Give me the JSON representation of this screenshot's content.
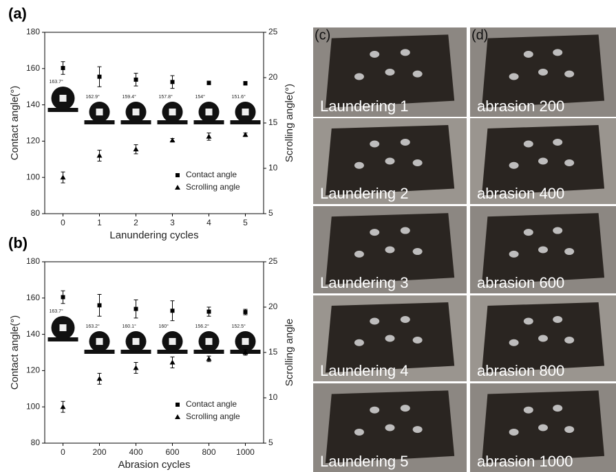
{
  "chart_data": [
    {
      "type": "scatter",
      "label": "(a)",
      "x_label": "Lanundering cycles",
      "y_label": "Contact angle(°)",
      "y2_label": "Scrolling angle(°)",
      "x": [
        0,
        1,
        2,
        3,
        4,
        5
      ],
      "xlim": [
        -0.5,
        5.5
      ],
      "xticks": [
        0,
        1,
        2,
        3,
        4,
        5
      ],
      "ylim": [
        80,
        180
      ],
      "yticks": [
        80,
        100,
        120,
        140,
        160,
        180
      ],
      "y2lim": [
        5,
        25
      ],
      "y2ticks": [
        5,
        10,
        15,
        20,
        25
      ],
      "series": [
        {
          "name": "Contact angle",
          "color": "#000000",
          "marker": "square",
          "values": [
            160.3,
            155.5,
            153.9,
            152.6,
            152.1,
            151.9
          ],
          "errors": [
            3.5,
            5.5,
            3.5,
            3.5,
            1,
            1
          ]
        },
        {
          "name": "Scrolling angle",
          "color": "#000000",
          "marker": "triangle",
          "axis": "y2",
          "values": [
            9.0,
            11.4,
            12.1,
            13.1,
            13.5,
            13.7
          ],
          "errors": [
            0.6,
            0.6,
            0.5,
            0.2,
            0.4,
            0.2
          ]
        }
      ],
      "annotations": [
        "163.7°",
        "162.9°",
        "159.4°",
        "157.8°",
        "154°",
        "151.6°"
      ]
    },
    {
      "type": "scatter",
      "label": "(b)",
      "x_label": "Abrasion cycles",
      "y_label": "Contact angle(°)",
      "y2_label": "Scrolling angle",
      "x": [
        0,
        200,
        400,
        600,
        800,
        1000
      ],
      "xlim": [
        -100,
        1100
      ],
      "xticks": [
        0,
        200,
        400,
        600,
        800,
        1000
      ],
      "ylim": [
        80,
        180
      ],
      "yticks": [
        80,
        100,
        120,
        140,
        160,
        180
      ],
      "y2lim": [
        5,
        25
      ],
      "y2ticks": [
        5,
        10,
        15,
        20,
        25
      ],
      "series": [
        {
          "name": "Contact angle",
          "color": "#000000",
          "marker": "square",
          "values": [
            160.5,
            156,
            154,
            153,
            152.5,
            152.3
          ],
          "errors": [
            3.5,
            6,
            5,
            5.5,
            2.5,
            1.5
          ]
        },
        {
          "name": "Scrolling angle",
          "color": "#000000",
          "marker": "triangle",
          "axis": "y2",
          "values": [
            9.0,
            12.1,
            13.3,
            13.9,
            14.3,
            15.0
          ],
          "errors": [
            0.6,
            0.6,
            0.6,
            0.6,
            0.3,
            0.3
          ]
        }
      ],
      "annotations": [
        "163.7°",
        "163.2°",
        "160.1°",
        "160°",
        "156.2°",
        "152.5°"
      ]
    }
  ],
  "photos": {
    "columns": [
      {
        "label": "(c)",
        "items": [
          "Laundering 1",
          "Laundering 2",
          "Laundering 3",
          "Laundering 4",
          "Laundering 5"
        ]
      },
      {
        "label": "(d)",
        "items": [
          "abrasion 200",
          "abrasion 400",
          "abrasion 600",
          "abrasion 800",
          "abrasion 1000"
        ]
      }
    ]
  }
}
